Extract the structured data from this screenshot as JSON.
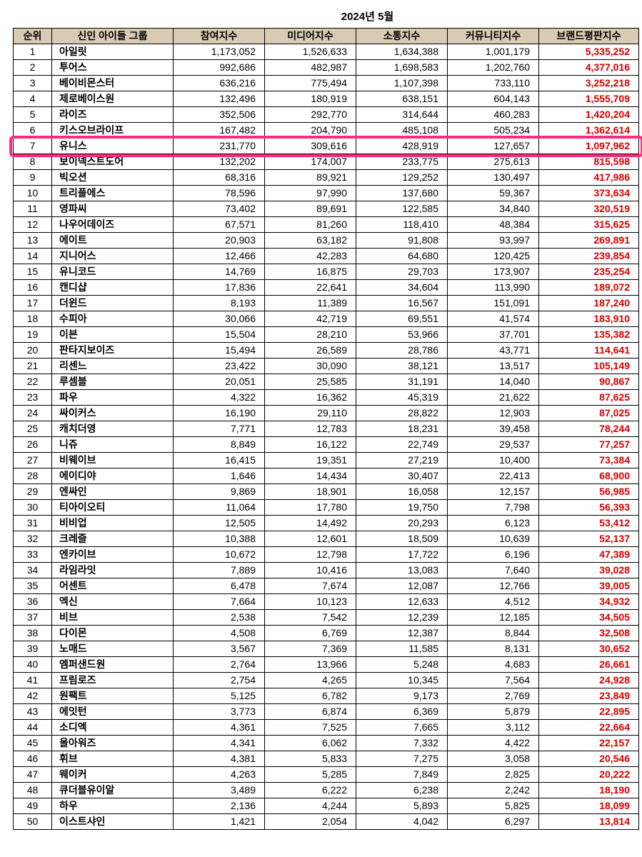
{
  "title": "2024년 5월",
  "columns": [
    "순위",
    "신인 아이돌 그룹",
    "참여지수",
    "미디어지수",
    "소통지수",
    "커뮤니티지수",
    "브랜드평판지수"
  ],
  "highlight_rank": 7,
  "highlight_color": "#ff2a7f",
  "header_bg": "#d9cbb3",
  "total_color": "#d00000",
  "rows": [
    {
      "rank": 1,
      "name": "아일릿",
      "v": [
        "1,173,052",
        "1,526,633",
        "1,634,388",
        "1,001,179"
      ],
      "total": "5,335,252"
    },
    {
      "rank": 2,
      "name": "투어스",
      "v": [
        "992,686",
        "482,987",
        "1,698,583",
        "1,202,760"
      ],
      "total": "4,377,016"
    },
    {
      "rank": 3,
      "name": "베이비몬스터",
      "v": [
        "636,216",
        "775,494",
        "1,107,398",
        "733,110"
      ],
      "total": "3,252,218"
    },
    {
      "rank": 4,
      "name": "제로베이스원",
      "v": [
        "132,496",
        "180,919",
        "638,151",
        "604,143"
      ],
      "total": "1,555,709"
    },
    {
      "rank": 5,
      "name": "라이즈",
      "v": [
        "352,506",
        "292,770",
        "314,644",
        "460,283"
      ],
      "total": "1,420,204"
    },
    {
      "rank": 6,
      "name": "키스오브라이프",
      "v": [
        "167,482",
        "204,790",
        "485,108",
        "505,234"
      ],
      "total": "1,362,614"
    },
    {
      "rank": 7,
      "name": "유니스",
      "v": [
        "231,770",
        "309,616",
        "428,919",
        "127,657"
      ],
      "total": "1,097,962"
    },
    {
      "rank": 8,
      "name": "보이넥스트도어",
      "v": [
        "132,202",
        "174,007",
        "233,775",
        "275,613"
      ],
      "total": "815,598"
    },
    {
      "rank": 9,
      "name": "빅오션",
      "v": [
        "68,316",
        "89,921",
        "129,252",
        "130,497"
      ],
      "total": "417,986"
    },
    {
      "rank": 10,
      "name": "트리플에스",
      "v": [
        "78,596",
        "97,990",
        "137,680",
        "59,367"
      ],
      "total": "373,634"
    },
    {
      "rank": 11,
      "name": "영파씨",
      "v": [
        "73,402",
        "89,691",
        "122,585",
        "34,840"
      ],
      "total": "320,519"
    },
    {
      "rank": 12,
      "name": "나우어데이즈",
      "v": [
        "67,571",
        "81,260",
        "118,410",
        "48,384"
      ],
      "total": "315,625"
    },
    {
      "rank": 13,
      "name": "에이트",
      "v": [
        "20,903",
        "63,182",
        "91,808",
        "93,997"
      ],
      "total": "269,891"
    },
    {
      "rank": 14,
      "name": "지니어스",
      "v": [
        "12,466",
        "42,283",
        "64,680",
        "120,425"
      ],
      "total": "239,854"
    },
    {
      "rank": 15,
      "name": "유니코드",
      "v": [
        "14,769",
        "16,875",
        "29,703",
        "173,907"
      ],
      "total": "235,254"
    },
    {
      "rank": 16,
      "name": "캔디샵",
      "v": [
        "17,836",
        "22,641",
        "34,604",
        "113,990"
      ],
      "total": "189,072"
    },
    {
      "rank": 17,
      "name": "더윈드",
      "v": [
        "8,193",
        "11,389",
        "16,567",
        "151,091"
      ],
      "total": "187,240"
    },
    {
      "rank": 18,
      "name": "수피아",
      "v": [
        "30,066",
        "42,719",
        "69,551",
        "41,574"
      ],
      "total": "183,910"
    },
    {
      "rank": 19,
      "name": "이븐",
      "v": [
        "15,504",
        "28,210",
        "53,966",
        "37,701"
      ],
      "total": "135,382"
    },
    {
      "rank": 20,
      "name": "판타지보이즈",
      "v": [
        "15,494",
        "26,589",
        "28,786",
        "43,771"
      ],
      "total": "114,641"
    },
    {
      "rank": 21,
      "name": "리센느",
      "v": [
        "23,422",
        "30,090",
        "38,121",
        "13,517"
      ],
      "total": "105,149"
    },
    {
      "rank": 22,
      "name": "루셈블",
      "v": [
        "20,051",
        "25,585",
        "31,191",
        "14,040"
      ],
      "total": "90,867"
    },
    {
      "rank": 23,
      "name": "파우",
      "v": [
        "4,322",
        "16,362",
        "45,319",
        "21,622"
      ],
      "total": "87,625"
    },
    {
      "rank": 24,
      "name": "싸이커스",
      "v": [
        "16,190",
        "29,110",
        "28,822",
        "12,903"
      ],
      "total": "87,025"
    },
    {
      "rank": 25,
      "name": "캐치더영",
      "v": [
        "7,771",
        "12,783",
        "18,231",
        "39,458"
      ],
      "total": "78,244"
    },
    {
      "rank": 26,
      "name": "니쥬",
      "v": [
        "8,849",
        "16,122",
        "22,749",
        "29,537"
      ],
      "total": "77,257"
    },
    {
      "rank": 27,
      "name": "비웨이브",
      "v": [
        "16,415",
        "19,351",
        "27,219",
        "10,400"
      ],
      "total": "73,384"
    },
    {
      "rank": 28,
      "name": "에이디야",
      "v": [
        "1,646",
        "14,434",
        "30,407",
        "22,413"
      ],
      "total": "68,900"
    },
    {
      "rank": 29,
      "name": "엔싸인",
      "v": [
        "9,869",
        "18,901",
        "16,058",
        "12,157"
      ],
      "total": "56,985"
    },
    {
      "rank": 30,
      "name": "티아이오티",
      "v": [
        "11,064",
        "17,780",
        "19,750",
        "7,798"
      ],
      "total": "56,393"
    },
    {
      "rank": 31,
      "name": "비비업",
      "v": [
        "12,505",
        "14,492",
        "20,293",
        "6,123"
      ],
      "total": "53,412"
    },
    {
      "rank": 32,
      "name": "크레즐",
      "v": [
        "10,388",
        "12,601",
        "18,509",
        "10,639"
      ],
      "total": "52,137"
    },
    {
      "rank": 33,
      "name": "엔카이브",
      "v": [
        "10,672",
        "12,798",
        "17,722",
        "6,196"
      ],
      "total": "47,389"
    },
    {
      "rank": 34,
      "name": "라임라잇",
      "v": [
        "7,889",
        "10,416",
        "13,083",
        "7,640"
      ],
      "total": "39,028"
    },
    {
      "rank": 35,
      "name": "어센트",
      "v": [
        "6,478",
        "7,674",
        "12,087",
        "12,766"
      ],
      "total": "39,005"
    },
    {
      "rank": 36,
      "name": "엑신",
      "v": [
        "7,664",
        "10,123",
        "12,633",
        "4,512"
      ],
      "total": "34,932"
    },
    {
      "rank": 37,
      "name": "비브",
      "v": [
        "2,538",
        "7,542",
        "12,239",
        "12,185"
      ],
      "total": "34,505"
    },
    {
      "rank": 38,
      "name": "다이몬",
      "v": [
        "4,508",
        "6,769",
        "12,387",
        "8,844"
      ],
      "total": "32,508"
    },
    {
      "rank": 39,
      "name": "노매드",
      "v": [
        "3,567",
        "7,369",
        "11,585",
        "8,131"
      ],
      "total": "30,652"
    },
    {
      "rank": 40,
      "name": "엠퍼샌드원",
      "v": [
        "2,764",
        "13,966",
        "5,248",
        "4,683"
      ],
      "total": "26,661"
    },
    {
      "rank": 41,
      "name": "프림로즈",
      "v": [
        "2,754",
        "4,265",
        "10,345",
        "7,564"
      ],
      "total": "24,928"
    },
    {
      "rank": 42,
      "name": "원팩트",
      "v": [
        "5,125",
        "6,782",
        "9,173",
        "2,769"
      ],
      "total": "23,849"
    },
    {
      "rank": 43,
      "name": "에잇턴",
      "v": [
        "3,773",
        "6,874",
        "6,369",
        "5,879"
      ],
      "total": "22,895"
    },
    {
      "rank": 44,
      "name": "소디엑",
      "v": [
        "4,361",
        "7,525",
        "7,665",
        "3,112"
      ],
      "total": "22,664"
    },
    {
      "rank": 45,
      "name": "올아워즈",
      "v": [
        "4,341",
        "6,062",
        "7,332",
        "4,422"
      ],
      "total": "22,157"
    },
    {
      "rank": 46,
      "name": "휘브",
      "v": [
        "4,381",
        "5,833",
        "7,275",
        "3,058"
      ],
      "total": "20,546"
    },
    {
      "rank": 47,
      "name": "웨이커",
      "v": [
        "4,263",
        "5,285",
        "7,849",
        "2,825"
      ],
      "total": "20,222"
    },
    {
      "rank": 48,
      "name": "큐더블유이알",
      "v": [
        "3,489",
        "6,222",
        "6,238",
        "2,242"
      ],
      "total": "18,190"
    },
    {
      "rank": 49,
      "name": "하우",
      "v": [
        "2,136",
        "4,244",
        "5,893",
        "5,825"
      ],
      "total": "18,099"
    },
    {
      "rank": 50,
      "name": "이스트샤인",
      "v": [
        "1,421",
        "2,054",
        "4,042",
        "6,297"
      ],
      "total": "13,814"
    }
  ]
}
